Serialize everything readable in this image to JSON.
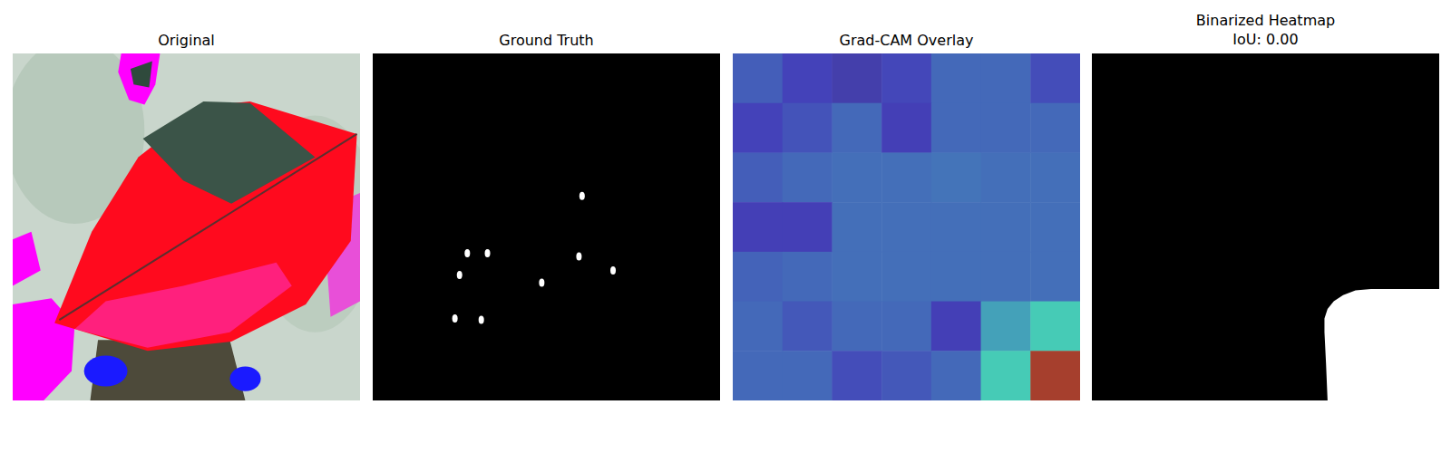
{
  "chart_data": [
    {
      "type": "image",
      "title": "Original"
    },
    {
      "type": "mask",
      "title": "Ground Truth",
      "x": [
        135,
        61,
        74,
        56,
        109,
        133,
        155,
        53,
        70
      ],
      "y": [
        92,
        129,
        129,
        143,
        148,
        131,
        140,
        171,
        172
      ],
      "xlim": [
        0,
        224
      ],
      "ylim": [
        224,
        0
      ],
      "tick_labels": false
    },
    {
      "type": "heatmap",
      "title": "Grad-CAM Overlay",
      "zlim": [
        0,
        1
      ],
      "cells": [
        [
          0.18,
          0.13,
          0.1,
          0.14,
          0.2,
          0.2,
          0.15
        ],
        [
          0.13,
          0.16,
          0.2,
          0.12,
          0.2,
          0.2,
          0.2
        ],
        [
          0.18,
          0.2,
          0.21,
          0.21,
          0.22,
          0.21,
          0.21
        ],
        [
          0.12,
          0.12,
          0.21,
          0.21,
          0.21,
          0.21,
          0.21
        ],
        [
          0.19,
          0.2,
          0.21,
          0.21,
          0.21,
          0.21,
          0.21
        ],
        [
          0.2,
          0.17,
          0.2,
          0.2,
          0.12,
          0.3,
          0.38
        ],
        [
          0.2,
          0.2,
          0.15,
          0.17,
          0.2,
          0.38,
          0.95
        ]
      ],
      "tick_labels": false
    },
    {
      "type": "mask",
      "title": "Binarized Heatmap",
      "subtitle": "IoU: 0.00",
      "x": [
        224,
        180,
        170,
        162,
        156,
        152,
        150,
        150,
        151,
        152,
        224
      ],
      "y": [
        152,
        152,
        153,
        156,
        160,
        165,
        171,
        180,
        200,
        224,
        224
      ],
      "xlim": [
        0,
        224
      ],
      "ylim": [
        224,
        0
      ],
      "tick_labels": false
    }
  ]
}
